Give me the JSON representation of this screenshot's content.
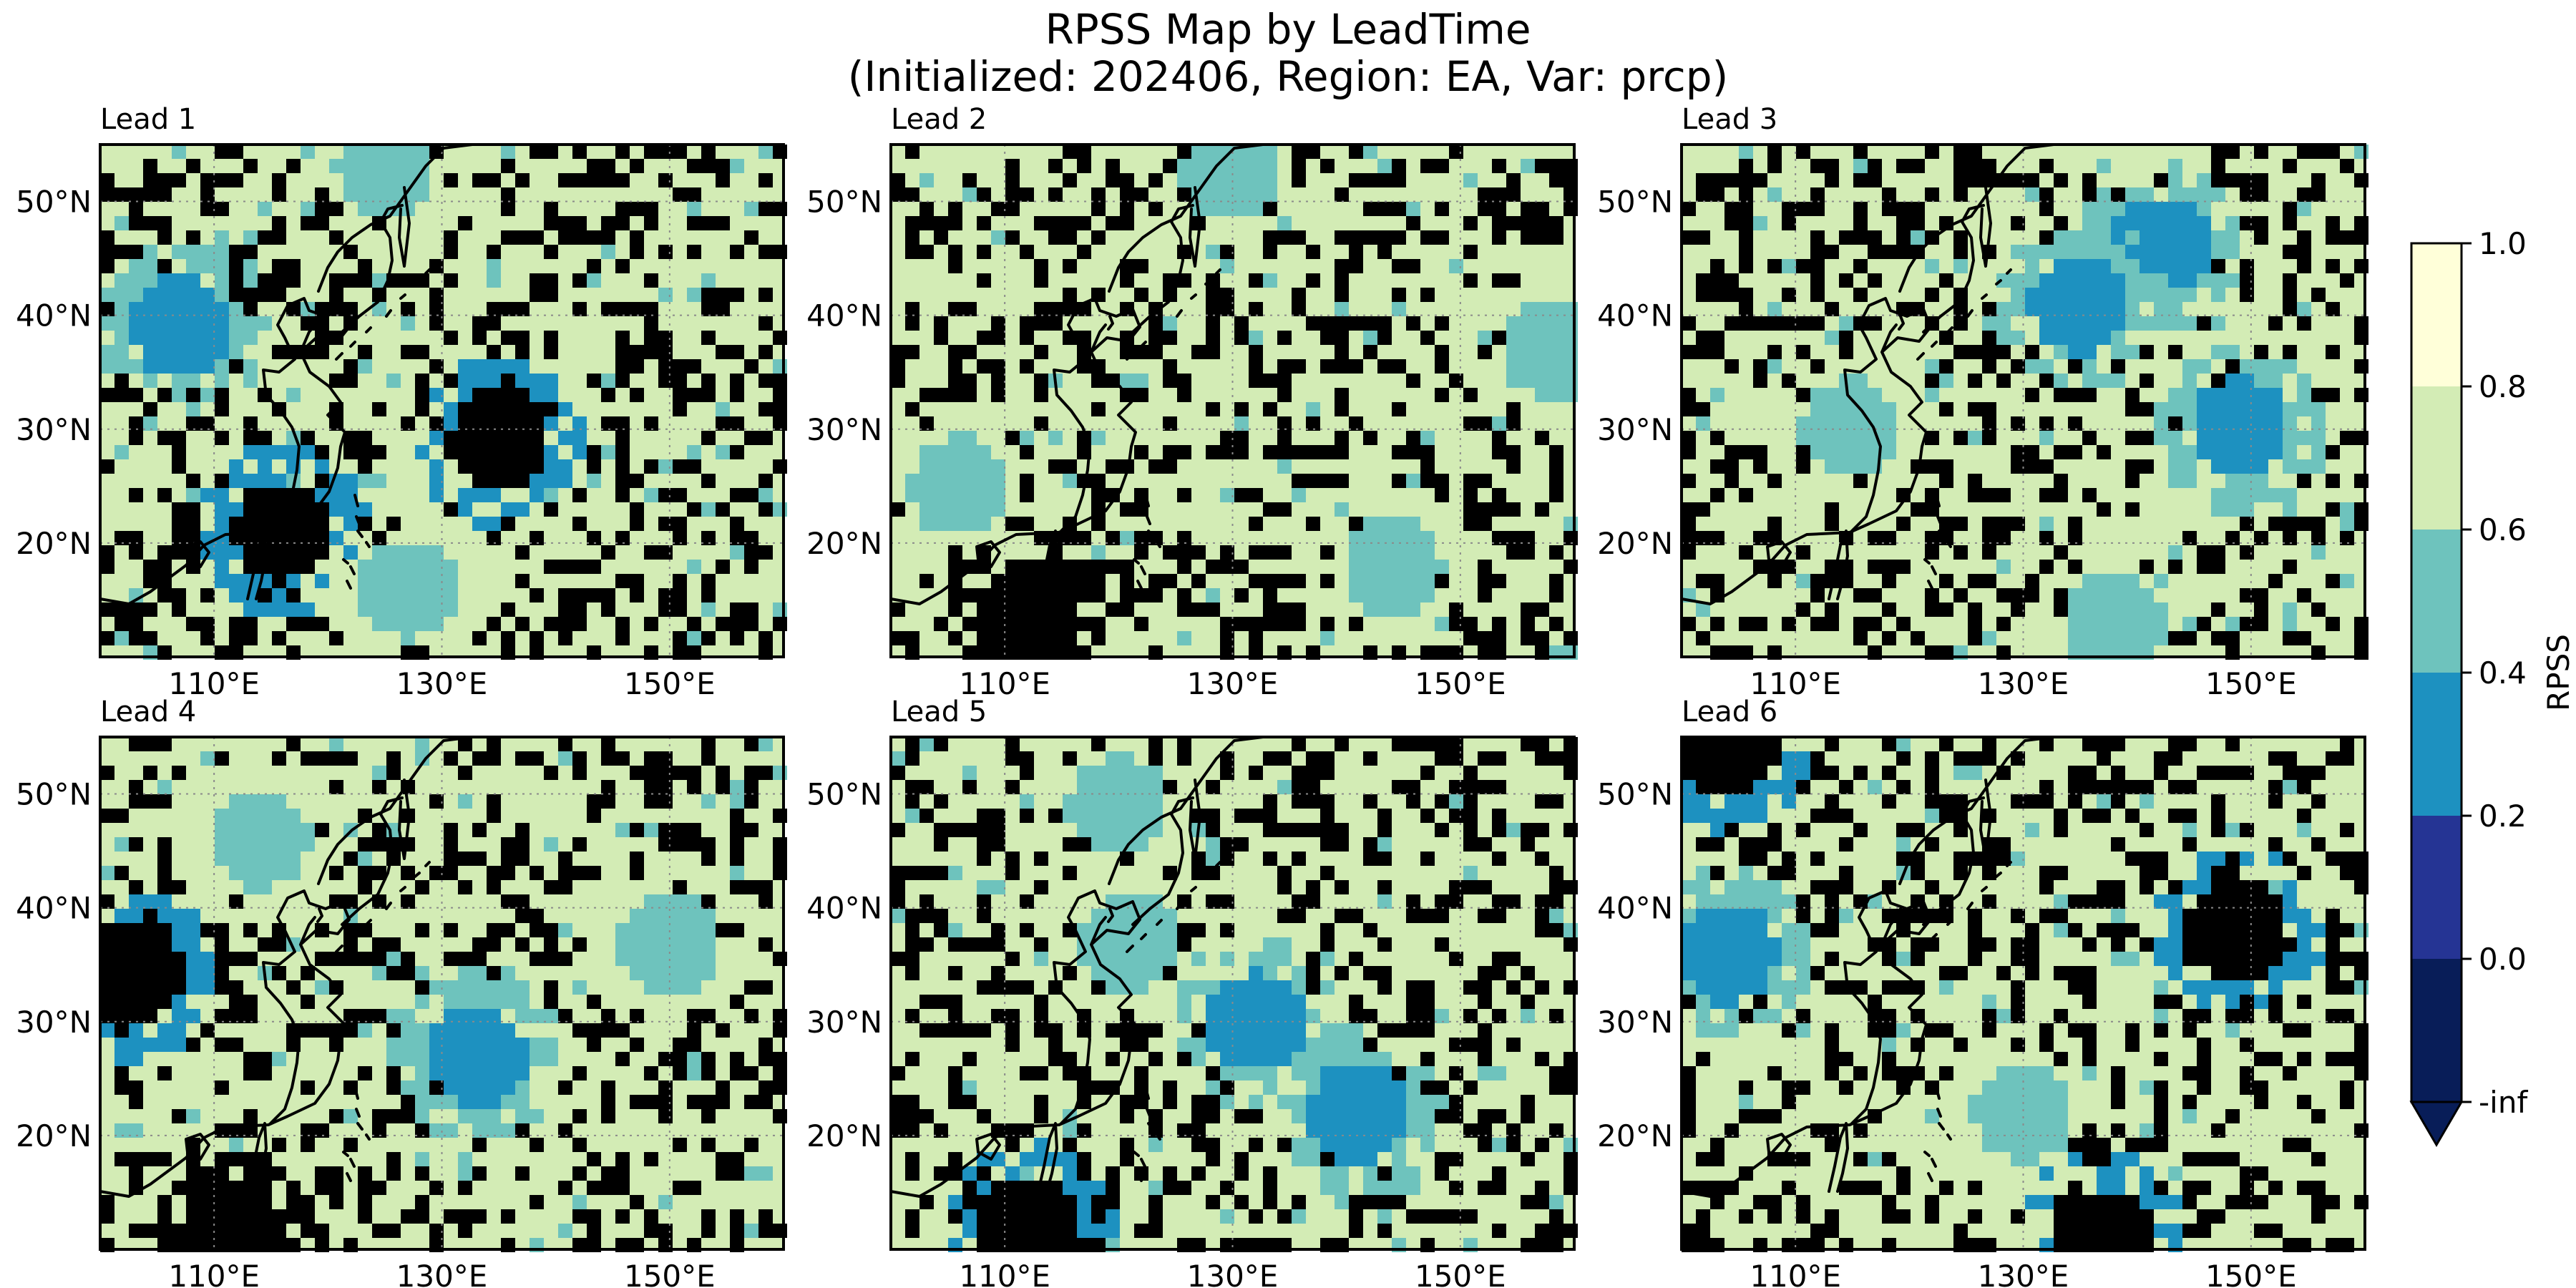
{
  "title_line1": "RPSS Map by LeadTime",
  "title_line2": "(Initialized: 202406, Region: EA, Var: prcp)",
  "chart_data": {
    "type": "heatmap",
    "map_extent": {
      "lon": [
        100,
        160
      ],
      "lat": [
        10,
        55
      ]
    },
    "xticks": [
      {
        "value": 110,
        "label": "110°E"
      },
      {
        "value": 130,
        "label": "130°E"
      },
      {
        "value": 150,
        "label": "150°E"
      }
    ],
    "yticks": [
      {
        "value": 20,
        "label": "20°N"
      },
      {
        "value": 30,
        "label": "30°N"
      },
      {
        "value": 40,
        "label": "40°N"
      },
      {
        "value": 50,
        "label": "50°N"
      }
    ],
    "gridlines": true,
    "colorbar": {
      "label": "RPSS",
      "position": "right",
      "extend": "min",
      "bins": [
        {
          "from": "-inf",
          "to": 0.0,
          "color": "#081d58"
        },
        {
          "from": 0.0,
          "to": 0.2,
          "color": "#253494"
        },
        {
          "from": 0.2,
          "to": 0.4,
          "color": "#1d91c0"
        },
        {
          "from": 0.4,
          "to": 0.6,
          "color": "#6ec3bd"
        },
        {
          "from": 0.6,
          "to": 0.8,
          "color": "#d3ecb5"
        },
        {
          "from": 0.8,
          "to": 1.0,
          "color": "#ffffd9"
        }
      ],
      "tick_labels": [
        "-inf",
        "0.0",
        "0.2",
        "0.4",
        "0.6",
        "0.8",
        "1.0"
      ]
    },
    "panels": [
      {
        "label": "Lead 1",
        "dominant_bin": "0.6-0.8",
        "features": [
          {
            "lon": 135,
            "lat": 29,
            "category": "0.0-0.2"
          },
          {
            "lon": 107,
            "lat": 39,
            "category": "0.2-0.4"
          },
          {
            "lon": 116,
            "lat": 21,
            "category": "0.0-0.2"
          },
          {
            "lon": 127,
            "lat": 16,
            "category": "0.4-0.6"
          },
          {
            "lon": 125,
            "lat": 53,
            "category": "0.4-0.6"
          }
        ]
      },
      {
        "label": "Lead 2",
        "dominant_bin": "0.6-0.8",
        "features": [
          {
            "lon": 112,
            "lat": 14,
            "category": "-inf-0.0"
          },
          {
            "lon": 106,
            "lat": 25,
            "category": "0.4-0.6"
          },
          {
            "lon": 144,
            "lat": 18,
            "category": "0.4-0.6"
          },
          {
            "lon": 158,
            "lat": 37,
            "category": "0.4-0.6"
          },
          {
            "lon": 130,
            "lat": 53,
            "category": "0.4-0.6"
          }
        ]
      },
      {
        "label": "Lead 3",
        "dominant_bin": "0.6-0.8",
        "features": [
          {
            "lon": 142,
            "lat": 46,
            "category": "0.2-0.4"
          },
          {
            "lon": 135,
            "lat": 41,
            "category": "0.2-0.4"
          },
          {
            "lon": 138,
            "lat": 13,
            "category": "0.4-0.6"
          },
          {
            "lon": 115,
            "lat": 30,
            "category": "0.4-0.6"
          },
          {
            "lon": 149,
            "lat": 30,
            "category": "0.2-0.4"
          }
        ]
      },
      {
        "label": "Lead 4",
        "dominant_bin": "0.6-0.8",
        "features": [
          {
            "lon": 133,
            "lat": 27,
            "category": "0.2-0.4"
          },
          {
            "lon": 112,
            "lat": 11,
            "category": "-inf-0.0"
          },
          {
            "lon": 103,
            "lat": 34,
            "category": "0.0-0.2"
          },
          {
            "lon": 150,
            "lat": 37,
            "category": "0.4-0.6"
          },
          {
            "lon": 114,
            "lat": 46,
            "category": "0.4-0.6"
          }
        ]
      },
      {
        "label": "Lead 5",
        "dominant_bin": "0.6-0.8",
        "features": [
          {
            "lon": 112,
            "lat": 12,
            "category": "0.0-0.2"
          },
          {
            "lon": 141,
            "lat": 22,
            "category": "0.2-0.4"
          },
          {
            "lon": 121,
            "lat": 37,
            "category": "0.4-0.6"
          },
          {
            "lon": 120,
            "lat": 49,
            "category": "0.4-0.6"
          },
          {
            "lon": 132,
            "lat": 30,
            "category": "0.2-0.4"
          }
        ]
      },
      {
        "label": "Lead 6",
        "dominant_bin": "0.6-0.8",
        "features": [
          {
            "lon": 104,
            "lat": 54,
            "category": "0.0-0.2"
          },
          {
            "lon": 137,
            "lat": 11,
            "category": "0.0-0.2"
          },
          {
            "lon": 149,
            "lat": 38,
            "category": "0.0-0.2"
          },
          {
            "lon": 104,
            "lat": 36,
            "category": "0.2-0.4"
          },
          {
            "lon": 130,
            "lat": 22,
            "category": "0.4-0.6"
          }
        ]
      }
    ]
  }
}
